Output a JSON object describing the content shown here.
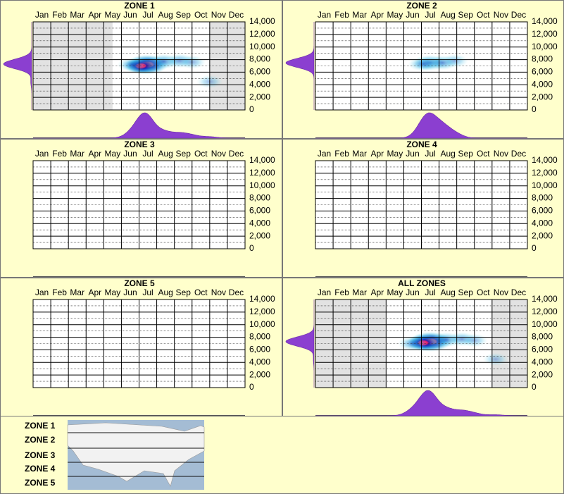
{
  "chart_data": [
    {
      "type": "heatmap",
      "title": "ZONE 1",
      "categories": [
        "Jan",
        "Feb",
        "Mar",
        "Apr",
        "May",
        "Jun",
        "Jul",
        "Aug",
        "Sep",
        "Oct",
        "Nov",
        "Dec"
      ],
      "ylim": [
        0,
        14000
      ],
      "yticks": [
        0,
        {
          "value": 2000,
          "label": "2,000"
        },
        {
          "value": 4000,
          "label": "4,000"
        },
        {
          "value": 6000,
          "label": "6,000"
        },
        {
          "value": 8000,
          "label": "8,000"
        },
        {
          "value": 10000,
          "label": "10,000"
        },
        {
          "value": 12000,
          "label": "12,000"
        },
        {
          "value": 14000,
          "label": "14,000"
        }
      ],
      "shaded": [
        [
          0,
          4.5
        ],
        [
          10,
          12
        ]
      ],
      "color": "#8b3fd0",
      "points": [
        {
          "x": 6.45,
          "y": 7200,
          "w": 1
        },
        {
          "x": 6.1,
          "y": 7000,
          "w": 0.5
        },
        {
          "x": 5.6,
          "y": 7200,
          "w": 0.25
        },
        {
          "x": 7.4,
          "y": 7700,
          "w": 0.35
        },
        {
          "x": 8.3,
          "y": 7800,
          "w": 0.25
        },
        {
          "x": 9.0,
          "y": 7600,
          "w": 0.15
        },
        {
          "x": 10.0,
          "y": 4500,
          "w": 0.08
        }
      ]
    },
    {
      "type": "heatmap",
      "title": "ZONE 2",
      "categories": [
        "Jan",
        "Feb",
        "Mar",
        "Apr",
        "May",
        "Jun",
        "Jul",
        "Aug",
        "Sep",
        "Oct",
        "Nov",
        "Dec"
      ],
      "ylim": [
        0,
        14000
      ],
      "yticks": [
        0,
        {
          "value": 2000,
          "label": "2,000"
        },
        {
          "value": 4000,
          "label": "4,000"
        },
        {
          "value": 6000,
          "label": "6,000"
        },
        {
          "value": 8000,
          "label": "8,000"
        },
        {
          "value": 10000,
          "label": "10,000"
        },
        {
          "value": 12000,
          "label": "12,000"
        },
        {
          "value": 14000,
          "label": "14,000"
        }
      ],
      "shaded": [],
      "color": "#8b3fd0",
      "points": [
        {
          "x": 6.5,
          "y": 7500,
          "w": 0.45
        },
        {
          "x": 6.1,
          "y": 7300,
          "w": 0.3
        },
        {
          "x": 7.2,
          "y": 7500,
          "w": 0.3
        },
        {
          "x": 7.9,
          "y": 7800,
          "w": 0.12
        }
      ]
    },
    {
      "type": "heatmap",
      "title": "ZONE 3",
      "categories": [
        "Jan",
        "Feb",
        "Mar",
        "Apr",
        "May",
        "Jun",
        "Jul",
        "Aug",
        "Sep",
        "Oct",
        "Nov",
        "Dec"
      ],
      "ylim": [
        0,
        14000
      ],
      "yticks": [
        0,
        {
          "value": 2000,
          "label": "2,000"
        },
        {
          "value": 4000,
          "label": "4,000"
        },
        {
          "value": 6000,
          "label": "6,000"
        },
        {
          "value": 8000,
          "label": "8,000"
        },
        {
          "value": 10000,
          "label": "10,000"
        },
        {
          "value": 12000,
          "label": "12,000"
        },
        {
          "value": 14000,
          "label": "14,000"
        }
      ],
      "shaded": [],
      "color": "#8b3fd0",
      "points": []
    },
    {
      "type": "heatmap",
      "title": "ZONE 4",
      "categories": [
        "Jan",
        "Feb",
        "Mar",
        "Apr",
        "May",
        "Jun",
        "Jul",
        "Aug",
        "Sep",
        "Oct",
        "Nov",
        "Dec"
      ],
      "ylim": [
        0,
        14000
      ],
      "yticks": [
        0,
        {
          "value": 2000,
          "label": "2,000"
        },
        {
          "value": 4000,
          "label": "4,000"
        },
        {
          "value": 6000,
          "label": "6,000"
        },
        {
          "value": 8000,
          "label": "8,000"
        },
        {
          "value": 10000,
          "label": "10,000"
        },
        {
          "value": 12000,
          "label": "12,000"
        },
        {
          "value": 14000,
          "label": "14,000"
        }
      ],
      "shaded": [],
      "color": "#8b3fd0",
      "points": []
    },
    {
      "type": "heatmap",
      "title": "ZONE 5",
      "categories": [
        "Jan",
        "Feb",
        "Mar",
        "Apr",
        "May",
        "Jun",
        "Jul",
        "Aug",
        "Sep",
        "Oct",
        "Nov",
        "Dec"
      ],
      "ylim": [
        0,
        14000
      ],
      "yticks": [
        0,
        {
          "value": 2000,
          "label": "2,000"
        },
        {
          "value": 4000,
          "label": "4,000"
        },
        {
          "value": 6000,
          "label": "6,000"
        },
        {
          "value": 8000,
          "label": "8,000"
        },
        {
          "value": 10000,
          "label": "10,000"
        },
        {
          "value": 12000,
          "label": "12,000"
        },
        {
          "value": 14000,
          "label": "14,000"
        }
      ],
      "shaded": [],
      "color": "#8b3fd0",
      "points": []
    },
    {
      "type": "heatmap",
      "title": "ALL ZONES",
      "categories": [
        "Jan",
        "Feb",
        "Mar",
        "Apr",
        "May",
        "Jun",
        "Jul",
        "Aug",
        "Sep",
        "Oct",
        "Nov",
        "Dec"
      ],
      "ylim": [
        0,
        14000
      ],
      "yticks": [
        0,
        {
          "value": 2000,
          "label": "2,000"
        },
        {
          "value": 4000,
          "label": "4,000"
        },
        {
          "value": 6000,
          "label": "6,000"
        },
        {
          "value": 8000,
          "label": "8,000"
        },
        {
          "value": 10000,
          "label": "10,000"
        },
        {
          "value": 12000,
          "label": "12,000"
        },
        {
          "value": 14000,
          "label": "14,000"
        }
      ],
      "shaded": [
        [
          0,
          4
        ],
        [
          10,
          12
        ]
      ],
      "color": "#8b3fd0",
      "points": [
        {
          "x": 6.5,
          "y": 7300,
          "w": 1
        },
        {
          "x": 6.1,
          "y": 7100,
          "w": 0.5
        },
        {
          "x": 5.5,
          "y": 7000,
          "w": 0.25
        },
        {
          "x": 7.4,
          "y": 7600,
          "w": 0.35
        },
        {
          "x": 8.3,
          "y": 7700,
          "w": 0.25
        },
        {
          "x": 9.0,
          "y": 7500,
          "w": 0.12
        },
        {
          "x": 10.2,
          "y": 4500,
          "w": 0.06
        }
      ]
    }
  ],
  "legend_labels": [
    "ZONE 1",
    "ZONE 2",
    "ZONE 3",
    "ZONE 4",
    "ZONE 5"
  ]
}
